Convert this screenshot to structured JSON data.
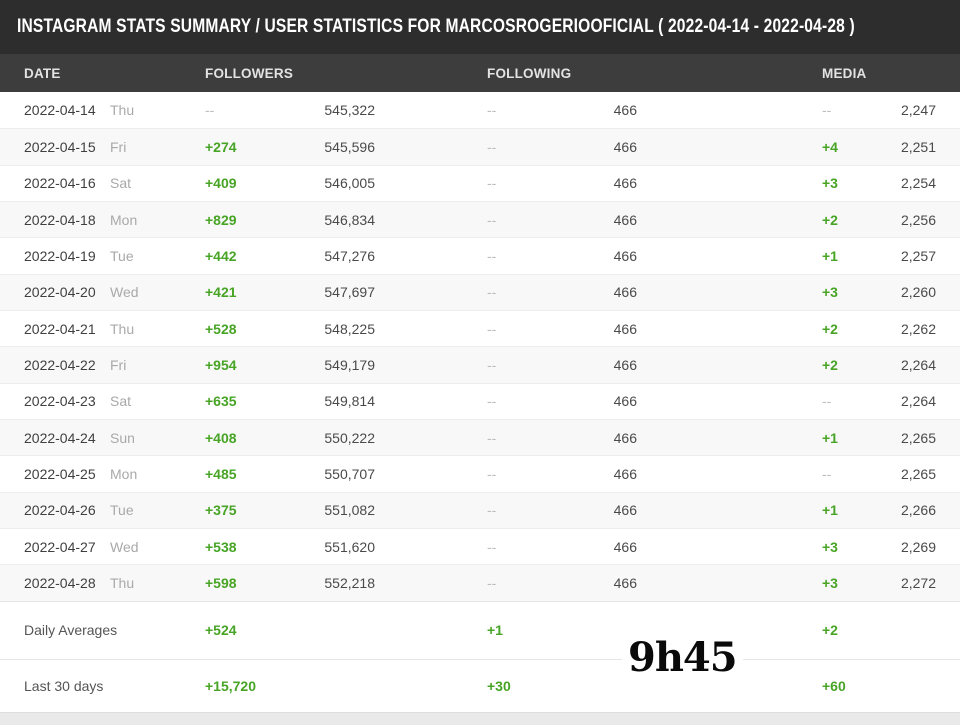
{
  "title": "INSTAGRAM STATS SUMMARY / USER STATISTICS FOR MARCOSROGERIOOFICIAL ( 2022-04-14 - 2022-04-28 )",
  "columns": {
    "date": "DATE",
    "followers": "FOLLOWERS",
    "following": "FOLLOWING",
    "media": "MEDIA"
  },
  "rows": [
    {
      "date": "2022-04-14",
      "day": "Thu",
      "followers_change": "--",
      "followers": "545,322",
      "following_change": "--",
      "following": "466",
      "media_change": "--",
      "media": "2,247"
    },
    {
      "date": "2022-04-15",
      "day": "Fri",
      "followers_change": "+274",
      "followers": "545,596",
      "following_change": "--",
      "following": "466",
      "media_change": "+4",
      "media": "2,251"
    },
    {
      "date": "2022-04-16",
      "day": "Sat",
      "followers_change": "+409",
      "followers": "546,005",
      "following_change": "--",
      "following": "466",
      "media_change": "+3",
      "media": "2,254"
    },
    {
      "date": "2022-04-18",
      "day": "Mon",
      "followers_change": "+829",
      "followers": "546,834",
      "following_change": "--",
      "following": "466",
      "media_change": "+2",
      "media": "2,256"
    },
    {
      "date": "2022-04-19",
      "day": "Tue",
      "followers_change": "+442",
      "followers": "547,276",
      "following_change": "--",
      "following": "466",
      "media_change": "+1",
      "media": "2,257"
    },
    {
      "date": "2022-04-20",
      "day": "Wed",
      "followers_change": "+421",
      "followers": "547,697",
      "following_change": "--",
      "following": "466",
      "media_change": "+3",
      "media": "2,260"
    },
    {
      "date": "2022-04-21",
      "day": "Thu",
      "followers_change": "+528",
      "followers": "548,225",
      "following_change": "--",
      "following": "466",
      "media_change": "+2",
      "media": "2,262"
    },
    {
      "date": "2022-04-22",
      "day": "Fri",
      "followers_change": "+954",
      "followers": "549,179",
      "following_change": "--",
      "following": "466",
      "media_change": "+2",
      "media": "2,264"
    },
    {
      "date": "2022-04-23",
      "day": "Sat",
      "followers_change": "+635",
      "followers": "549,814",
      "following_change": "--",
      "following": "466",
      "media_change": "--",
      "media": "2,264"
    },
    {
      "date": "2022-04-24",
      "day": "Sun",
      "followers_change": "+408",
      "followers": "550,222",
      "following_change": "--",
      "following": "466",
      "media_change": "+1",
      "media": "2,265"
    },
    {
      "date": "2022-04-25",
      "day": "Mon",
      "followers_change": "+485",
      "followers": "550,707",
      "following_change": "--",
      "following": "466",
      "media_change": "--",
      "media": "2,265"
    },
    {
      "date": "2022-04-26",
      "day": "Tue",
      "followers_change": "+375",
      "followers": "551,082",
      "following_change": "--",
      "following": "466",
      "media_change": "+1",
      "media": "2,266"
    },
    {
      "date": "2022-04-27",
      "day": "Wed",
      "followers_change": "+538",
      "followers": "551,620",
      "following_change": "--",
      "following": "466",
      "media_change": "+3",
      "media": "2,269"
    },
    {
      "date": "2022-04-28",
      "day": "Thu",
      "followers_change": "+598",
      "followers": "552,218",
      "following_change": "--",
      "following": "466",
      "media_change": "+3",
      "media": "2,272"
    }
  ],
  "summary": [
    {
      "label": "Daily Averages",
      "followers_change": "+524",
      "following_change": "+1",
      "media_change": "+2"
    },
    {
      "label": "Last 30 days",
      "followers_change": "+15,720",
      "following_change": "+30",
      "media_change": "+60"
    }
  ],
  "watermark": "9h45",
  "colors": {
    "green": "#47a425",
    "titlebar_bg": "#2d2d2d",
    "colheader_bg": "#3d3d3d",
    "stripe_bg": "#f8f8f8",
    "bottom_strip_bg": "#e9e9e9"
  }
}
